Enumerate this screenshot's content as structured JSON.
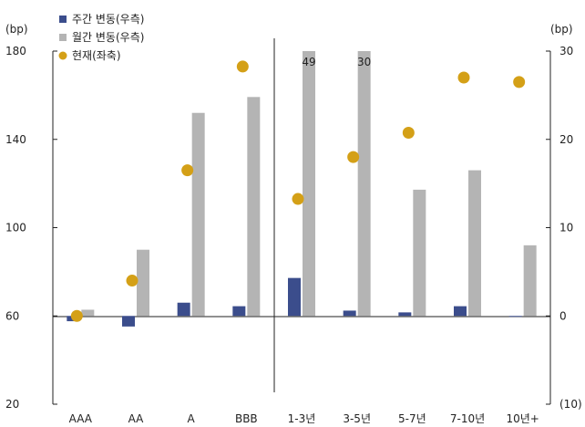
{
  "chart_data": {
    "type": "bar",
    "left_axis": {
      "unit": "(bp)",
      "min": 20,
      "max": 180,
      "ticks": [
        "20",
        "60",
        "100",
        "140",
        "180"
      ]
    },
    "right_axis": {
      "unit": "(bp)",
      "min": -10,
      "max": 30,
      "ticks": [
        "(10)",
        "0",
        "10",
        "20",
        "30"
      ]
    },
    "categories": [
      "AAA",
      "AA",
      "A",
      "BBB",
      "1-3년",
      "3-5년",
      "5-7년",
      "7-10년",
      "10년+"
    ],
    "series": [
      {
        "name": "주간 변동(우측)",
        "axis": "right",
        "kind": "bar",
        "color": "#3b4d8c",
        "values": [
          -0.6,
          -1.2,
          1.5,
          1.1,
          4.3,
          0.6,
          0.4,
          1.1,
          -0.1
        ]
      },
      {
        "name": "월간 변동(우측)",
        "axis": "right",
        "kind": "bar",
        "color": "#b4b4b4",
        "values": [
          0.7,
          7.5,
          23.0,
          24.8,
          30,
          30,
          14.3,
          16.5,
          8.0
        ]
      },
      {
        "name": "현재(좌축)",
        "axis": "left",
        "kind": "dot",
        "color": "#d4a017",
        "values": [
          60,
          76,
          126,
          173,
          113,
          132,
          143,
          168,
          166
        ]
      }
    ],
    "bar_labels": [
      {
        "category_index": 4,
        "text": "49"
      },
      {
        "category_index": 5,
        "text": "30"
      }
    ],
    "divider_after_category": 3,
    "legend_position": "top-left"
  }
}
